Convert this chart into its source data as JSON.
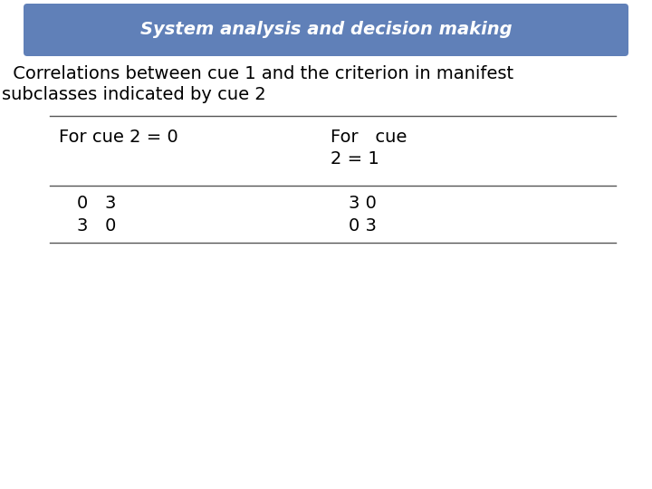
{
  "title": "System analysis and decision making",
  "title_bg_color": "#6080b8",
  "title_text_color": "#ffffff",
  "subtitle_line1": " Correlations between cue 1 and the criterion in manifest",
  "subtitle_line2": "subclasses indicated by cue 2",
  "col1_header": "For cue 2 = 0",
  "col2_header_line1": "For   cue",
  "col2_header_line2": "2 = 1",
  "data_rows": [
    [
      "0   3",
      "3 0"
    ],
    [
      "3   0",
      "0 3"
    ]
  ],
  "bg_color": "#ffffff",
  "text_color": "#000000",
  "line_color": "#555555",
  "font_size_title": 14,
  "font_size_body": 14,
  "font_size_table": 14
}
